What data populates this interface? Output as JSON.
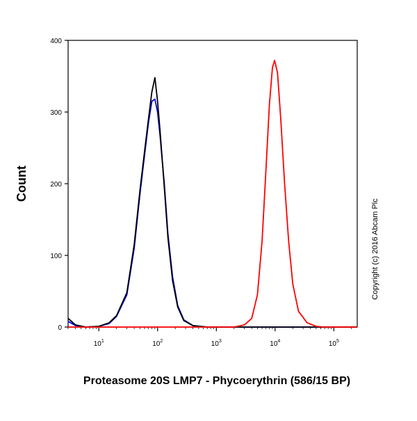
{
  "chart_data": {
    "type": "line",
    "xlabel": "Proteasome 20S LMP7 - Phycoerythrin (586/15 BP)",
    "ylabel": "Count",
    "x_scale": "log",
    "xlim": [
      3,
      250000
    ],
    "ylim": [
      0,
      400
    ],
    "y_ticks": [
      0,
      100,
      200,
      300,
      400
    ],
    "x_ticks": [
      {
        "value": 10,
        "base": "10",
        "exp": "1"
      },
      {
        "value": 100,
        "base": "10",
        "exp": "2"
      },
      {
        "value": 1000,
        "base": "10",
        "exp": "3"
      },
      {
        "value": 10000,
        "base": "10",
        "exp": "4"
      },
      {
        "value": 100000,
        "base": "10",
        "exp": "5"
      }
    ],
    "annotation": "Copyright (c) 2016 Abcam Plc",
    "grid": false,
    "series": [
      {
        "color": "#0000ff",
        "points": [
          [
            3,
            8
          ],
          [
            4,
            2
          ],
          [
            6,
            0
          ],
          [
            10,
            1
          ],
          [
            15,
            5
          ],
          [
            20,
            15
          ],
          [
            30,
            45
          ],
          [
            40,
            110
          ],
          [
            50,
            185
          ],
          [
            60,
            240
          ],
          [
            70,
            285
          ],
          [
            80,
            315
          ],
          [
            90,
            318
          ],
          [
            100,
            300
          ],
          [
            110,
            268
          ],
          [
            130,
            200
          ],
          [
            150,
            130
          ],
          [
            180,
            70
          ],
          [
            220,
            30
          ],
          [
            280,
            10
          ],
          [
            400,
            2
          ],
          [
            700,
            0
          ],
          [
            250000,
            0
          ]
        ]
      },
      {
        "color": "#000000",
        "points": [
          [
            3,
            12
          ],
          [
            4,
            3
          ],
          [
            6,
            0
          ],
          [
            10,
            1
          ],
          [
            15,
            6
          ],
          [
            20,
            16
          ],
          [
            30,
            48
          ],
          [
            40,
            115
          ],
          [
            50,
            190
          ],
          [
            60,
            245
          ],
          [
            70,
            290
          ],
          [
            80,
            328
          ],
          [
            90,
            348
          ],
          [
            100,
            315
          ],
          [
            110,
            275
          ],
          [
            130,
            195
          ],
          [
            150,
            125
          ],
          [
            180,
            65
          ],
          [
            220,
            28
          ],
          [
            280,
            9
          ],
          [
            400,
            2
          ],
          [
            700,
            0
          ],
          [
            250000,
            0
          ]
        ]
      },
      {
        "color": "#ff0000",
        "points": [
          [
            3,
            0
          ],
          [
            2000,
            0
          ],
          [
            3000,
            3
          ],
          [
            4000,
            12
          ],
          [
            5000,
            45
          ],
          [
            6000,
            120
          ],
          [
            7000,
            220
          ],
          [
            8000,
            310
          ],
          [
            9000,
            362
          ],
          [
            9800,
            372
          ],
          [
            11000,
            355
          ],
          [
            12500,
            290
          ],
          [
            14500,
            200
          ],
          [
            17000,
            120
          ],
          [
            20000,
            60
          ],
          [
            25000,
            22
          ],
          [
            35000,
            6
          ],
          [
            50000,
            1
          ],
          [
            70000,
            0
          ],
          [
            250000,
            0
          ]
        ]
      }
    ]
  }
}
